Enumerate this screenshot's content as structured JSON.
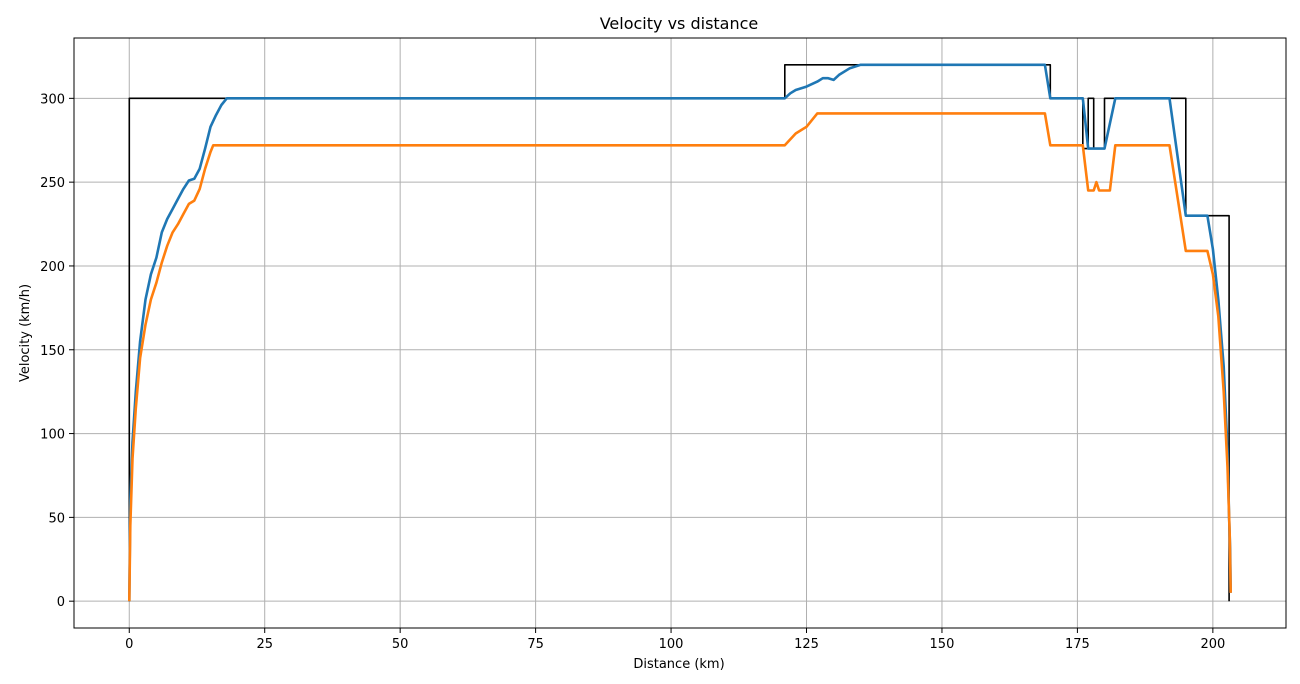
{
  "chart_data": {
    "type": "line",
    "title": "Velocity vs distance",
    "xlabel": "Distance (km)",
    "ylabel": "Velocity (km/h)",
    "xlim": [
      -10.2,
      213.5
    ],
    "ylim": [
      -16,
      336
    ],
    "xticks": [
      0,
      25,
      50,
      75,
      100,
      125,
      150,
      175,
      200
    ],
    "yticks": [
      0,
      50,
      100,
      150,
      200,
      250,
      300
    ],
    "grid": true,
    "colors": {
      "speed_limit": "#000000",
      "max_velocity": "#1f77b4",
      "recommended": "#ff7f0e",
      "grid": "#b0b0b0"
    },
    "series": [
      {
        "key": "speed_limit",
        "points": [
          [
            0,
            0
          ],
          [
            0,
            300
          ],
          [
            121,
            300
          ],
          [
            121,
            320
          ],
          [
            170,
            320
          ],
          [
            170,
            300
          ],
          [
            176,
            300
          ],
          [
            176,
            270
          ],
          [
            177,
            270
          ],
          [
            177,
            300
          ],
          [
            178,
            300
          ],
          [
            178,
            270
          ],
          [
            180,
            270
          ],
          [
            180,
            300
          ],
          [
            195,
            300
          ],
          [
            195,
            230
          ],
          [
            203,
            230
          ],
          [
            203,
            0
          ]
        ]
      },
      {
        "key": "max_velocity",
        "points": [
          [
            0,
            0
          ],
          [
            0.2,
            60
          ],
          [
            0.6,
            95
          ],
          [
            1.2,
            125
          ],
          [
            2,
            155
          ],
          [
            3,
            180
          ],
          [
            4,
            195
          ],
          [
            5,
            205
          ],
          [
            6,
            220
          ],
          [
            7,
            228
          ],
          [
            8,
            234
          ],
          [
            9,
            240
          ],
          [
            10,
            246
          ],
          [
            11,
            251
          ],
          [
            12,
            252
          ],
          [
            13,
            258
          ],
          [
            14,
            270
          ],
          [
            15,
            283
          ],
          [
            16,
            290
          ],
          [
            17,
            296
          ],
          [
            18,
            300
          ],
          [
            121,
            300
          ],
          [
            122,
            303
          ],
          [
            123,
            305
          ],
          [
            125,
            307
          ],
          [
            127,
            310
          ],
          [
            128,
            312
          ],
          [
            129,
            312
          ],
          [
            130,
            311
          ],
          [
            131,
            314
          ],
          [
            133,
            318
          ],
          [
            135,
            320
          ],
          [
            169,
            320
          ],
          [
            170,
            300
          ],
          [
            176,
            300
          ],
          [
            177,
            270
          ],
          [
            180,
            270
          ],
          [
            182,
            300
          ],
          [
            192,
            300
          ],
          [
            195,
            230
          ],
          [
            199,
            230
          ],
          [
            200,
            210
          ],
          [
            201,
            180
          ],
          [
            202,
            140
          ],
          [
            202.7,
            90
          ],
          [
            203,
            50
          ],
          [
            203.2,
            30
          ],
          [
            203.3,
            5
          ]
        ]
      },
      {
        "key": "recommended",
        "points": [
          [
            0,
            0
          ],
          [
            0.2,
            45
          ],
          [
            0.6,
            85
          ],
          [
            1.2,
            115
          ],
          [
            2,
            145
          ],
          [
            3,
            165
          ],
          [
            4,
            180
          ],
          [
            5,
            190
          ],
          [
            6,
            202
          ],
          [
            7,
            212
          ],
          [
            8,
            220
          ],
          [
            9,
            225
          ],
          [
            10,
            231
          ],
          [
            11,
            237
          ],
          [
            12,
            239
          ],
          [
            13,
            246
          ],
          [
            14,
            258
          ],
          [
            15,
            268
          ],
          [
            15.5,
            272
          ],
          [
            121,
            272
          ],
          [
            123,
            279
          ],
          [
            125,
            283
          ],
          [
            127,
            291
          ],
          [
            169,
            291
          ],
          [
            170,
            272
          ],
          [
            176,
            272
          ],
          [
            177,
            245
          ],
          [
            178,
            245
          ],
          [
            178.5,
            250
          ],
          [
            179,
            245
          ],
          [
            181,
            245
          ],
          [
            182,
            272
          ],
          [
            192,
            272
          ],
          [
            195,
            209
          ],
          [
            199,
            209
          ],
          [
            200,
            195
          ],
          [
            201,
            170
          ],
          [
            202,
            125
          ],
          [
            202.7,
            80
          ],
          [
            203.1,
            40
          ],
          [
            203.3,
            5
          ]
        ]
      }
    ]
  }
}
